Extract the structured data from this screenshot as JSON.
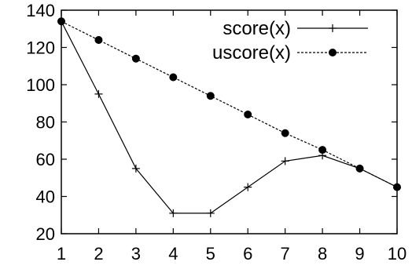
{
  "chart_data": {
    "type": "line",
    "title": "",
    "xlabel": "",
    "ylabel": "",
    "x": [
      1,
      2,
      3,
      4,
      5,
      6,
      7,
      8,
      9,
      10
    ],
    "xlim": [
      1,
      10
    ],
    "ylim": [
      20,
      140
    ],
    "xticks": [
      "1",
      "2",
      "3",
      "4",
      "5",
      "6",
      "7",
      "8",
      "9",
      "10"
    ],
    "yticks": [
      "20",
      "40",
      "60",
      "80",
      "100",
      "120",
      "140"
    ],
    "grid": false,
    "legend_position": "top-right",
    "series": [
      {
        "name": "score(x)",
        "values": [
          134,
          95,
          55,
          31,
          31,
          45,
          59,
          62,
          55,
          45
        ],
        "marker": "plus",
        "line_style": "solid",
        "color": "#000000"
      },
      {
        "name": "uscore(x)",
        "values": [
          134,
          124,
          114,
          104,
          94,
          84,
          74,
          65,
          55,
          45
        ],
        "marker": "filled-circle",
        "line_style": "dashed",
        "color": "#000000"
      }
    ]
  }
}
